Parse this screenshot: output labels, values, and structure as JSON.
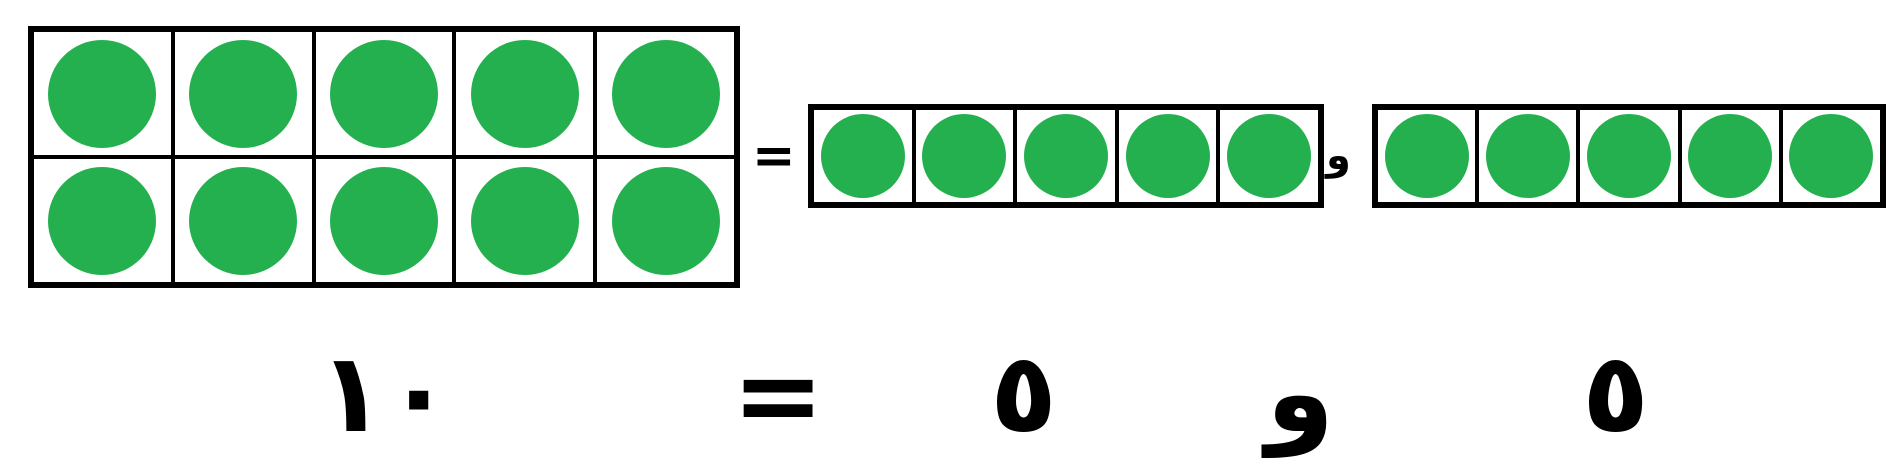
{
  "colors": {
    "dot": "#24b04e",
    "line": "#000000"
  },
  "ten_frame": {
    "rows": 2,
    "cols": 5,
    "filled": 10
  },
  "five_frames": [
    {
      "cols": 5,
      "filled": 5
    },
    {
      "cols": 5,
      "filled": 5
    }
  ],
  "small_equation": {
    "equals": "=",
    "and": "و"
  },
  "big_equation": {
    "total": "١٠",
    "equals": "=",
    "first": "٥",
    "and": "و",
    "second": "٥"
  }
}
